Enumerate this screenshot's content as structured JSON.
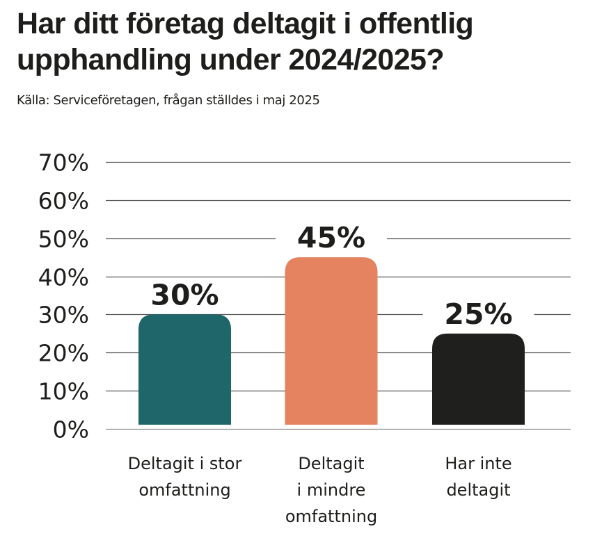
{
  "header": {
    "title": "Har ditt företag deltagit i offentlig upphandling under 2024/2025?",
    "subtitle": "Källa: Serviceföretagen, frågan ställdes i maj 2025"
  },
  "chart_data": {
    "type": "bar",
    "title": "Har ditt företag deltagit i offentlig upphandling under 2024/2025?",
    "subtitle": "Källa: Serviceföretagen, frågan ställdes i maj 2025",
    "categories": [
      [
        "Deltagit i stor",
        "omfattning"
      ],
      [
        "Deltagit",
        "i mindre",
        "omfattning"
      ],
      [
        "Har inte",
        "deltagit"
      ]
    ],
    "values": [
      30,
      45,
      25
    ],
    "value_labels": [
      "30%",
      "45%",
      "25%"
    ],
    "colors": [
      "#1f666b",
      "#e58360",
      "#1f1f1d"
    ],
    "yticks": [
      0,
      10,
      20,
      30,
      40,
      50,
      60,
      70
    ],
    "ytick_labels": [
      "0%",
      "10%",
      "20%",
      "30%",
      "40%",
      "50%",
      "60%",
      "70%"
    ],
    "ylim": [
      0,
      70
    ],
    "xlabel": "",
    "ylabel": "",
    "grid": true,
    "legend": "none"
  }
}
